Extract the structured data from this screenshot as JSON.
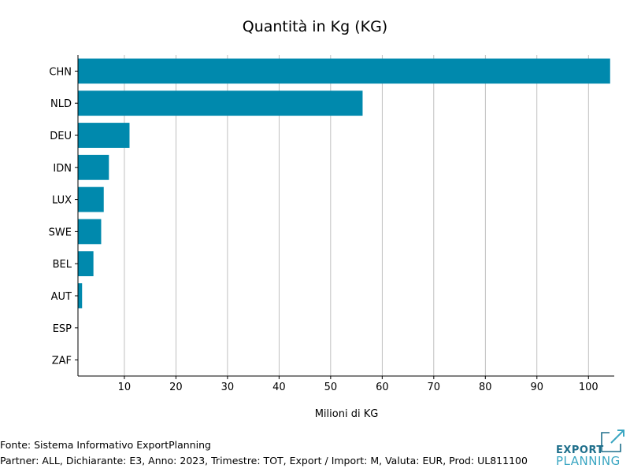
{
  "chart_data": {
    "type": "bar",
    "orientation": "horizontal",
    "title": "Quantità in Kg (KG)",
    "xlabel": "Milioni di KG",
    "ylabel": "",
    "categories": [
      "CHN",
      "NLD",
      "DEU",
      "IDN",
      "LUX",
      "SWE",
      "BEL",
      "AUT",
      "ESP",
      "ZAF"
    ],
    "values": [
      104.2,
      56.2,
      11.0,
      7.0,
      6.0,
      5.5,
      4.0,
      1.8,
      1.0,
      0.1
    ],
    "xlim": [
      1,
      105
    ],
    "xticks": [
      10,
      20,
      30,
      40,
      50,
      60,
      70,
      80,
      90,
      100
    ],
    "grid": "vertical",
    "bar_color": "#0089ad"
  },
  "footer": {
    "source": "Fonte: Sistema Informativo ExportPlanning",
    "details": "Partner: ALL, Dichiarante: E3, Anno: 2023, Trimestre: TOT, Export / Import: M, Valuta: EUR, Prod: UL811100"
  },
  "logo": {
    "line1": "EXPORT",
    "line2": "PLANNING",
    "color_dark": "#1f6f8b",
    "color_light": "#3aa6c2"
  }
}
